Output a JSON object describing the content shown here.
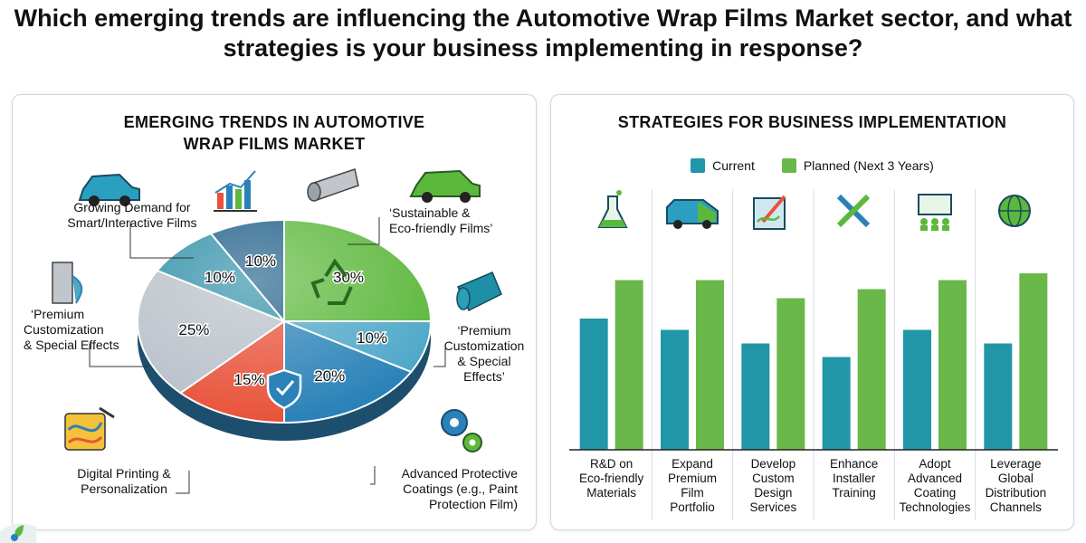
{
  "title": "Which emerging trends are influencing the Automotive Wrap Films Market sector, and what strategies is your business implementing in response?",
  "left_panel": {
    "title_line1": "EMERGING TRENDS IN AUTOMOTIVE",
    "title_line2": "WRAP FILMS MARKET",
    "callouts": {
      "growing_line1": "Growing Demand for",
      "growing_line2": "Smart/Interactive Films",
      "premium_left_line1": "‘Premium",
      "premium_left_line2": "Customization",
      "premium_left_line3": "& Special Effects",
      "sustainable_line1": "‘Sustainable &",
      "sustainable_line2": "Eco-friendly Films’",
      "premium_right_line1": "‘Premium",
      "premium_right_line2": "Customization",
      "premium_right_line3": "& Special",
      "premium_right_line4": "Effects’",
      "digital_line1": "Digital Printing &",
      "digital_line2": "Personalization",
      "advanced_line1": "Advanced Protective",
      "advanced_line2": "Coatings (e.g., Paint",
      "advanced_line3": "Protection Film)"
    }
  },
  "pie_slices": [
    {
      "label": "30%",
      "value": 30,
      "color": "#5cb83c"
    },
    {
      "label": "10%",
      "value": 10,
      "color": "#4ea8c8"
    },
    {
      "label": "20%",
      "value": 20,
      "color": "#2a82b8"
    },
    {
      "label": "15%",
      "value": 15,
      "color": "#e8523a"
    },
    {
      "label": "25%",
      "value": 25,
      "color": "#b8c0c8"
    },
    {
      "label": "10%",
      "value": 10,
      "color": "#2f8fa8"
    },
    {
      "label": "10%",
      "value": 10,
      "color": "#1f5f88"
    }
  ],
  "chart_data": {
    "type": "bar",
    "title": "STRATEGIES FOR BUSINESS IMPLEMENTATION",
    "categories_lines": [
      [
        "R&D on",
        "Eco-friendly",
        "Materials"
      ],
      [
        "Expand",
        "Premium",
        "Film",
        "Portfolio"
      ],
      [
        "Develop",
        "Custom",
        "Design",
        "Services"
      ],
      [
        "Enhance",
        "Installer",
        "Training"
      ],
      [
        "Adopt",
        "Advanced",
        "Coating",
        "Technologies"
      ],
      [
        "Leverage",
        "Global",
        "Distribution",
        "Channels"
      ]
    ],
    "series": [
      {
        "name": "Current",
        "color": "#2196a8",
        "values": [
          58,
          53,
          47,
          41,
          53,
          47
        ]
      },
      {
        "name": "Planned (Next 3 Years)",
        "color": "#6ab84a",
        "values": [
          75,
          75,
          67,
          71,
          75,
          78
        ]
      }
    ],
    "ylim": [
      0,
      100
    ],
    "grid": false,
    "legend": "top-center"
  }
}
